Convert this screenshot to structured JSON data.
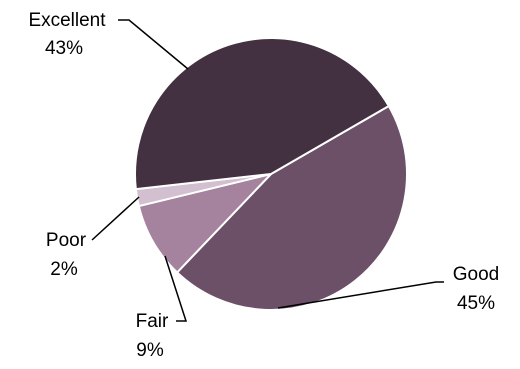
{
  "chart_data": {
    "type": "pie",
    "title": "",
    "categories": [
      "Excellent",
      "Good",
      "Fair",
      "Poor"
    ],
    "values": [
      43,
      45,
      9,
      2
    ],
    "value_labels": [
      "43%",
      "45%",
      "9%",
      "2%"
    ],
    "colors": [
      "#433141",
      "#6c5068",
      "#a5829d",
      "#d2bfd0"
    ],
    "legend": "none",
    "label_style": "leader-lines"
  }
}
